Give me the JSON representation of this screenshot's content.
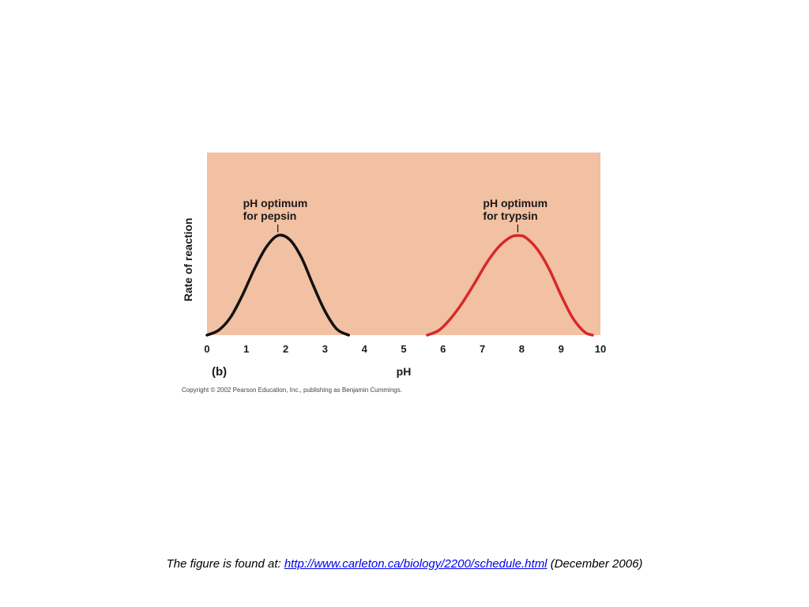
{
  "chart_data": {
    "type": "line",
    "xlabel": "pH",
    "ylabel": "Rate of reaction",
    "xlim": [
      0,
      10
    ],
    "x_ticks": [
      "0",
      "1",
      "2",
      "3",
      "4",
      "5",
      "6",
      "7",
      "8",
      "9",
      "10"
    ],
    "panel_label": "(b)",
    "background_color": "#f2c0a2",
    "series": [
      {
        "color": "#111111",
        "x": [
          0,
          0.3,
          0.6,
          0.9,
          1.2,
          1.5,
          1.8,
          2.1,
          2.4,
          2.7,
          3.0,
          3.3,
          3.6
        ],
        "y": [
          0,
          0.05,
          0.18,
          0.4,
          0.66,
          0.88,
          1.0,
          0.96,
          0.78,
          0.5,
          0.24,
          0.06,
          0
        ]
      },
      {
        "color": "#d42a2a",
        "x": [
          5.6,
          5.9,
          6.2,
          6.5,
          6.8,
          7.1,
          7.4,
          7.7,
          7.9,
          8.1,
          8.4,
          8.7,
          9.0,
          9.3,
          9.6,
          9.8
        ],
        "y": [
          0,
          0.05,
          0.17,
          0.33,
          0.52,
          0.72,
          0.88,
          0.98,
          1.0,
          0.98,
          0.86,
          0.66,
          0.4,
          0.17,
          0.03,
          0
        ]
      }
    ],
    "annotations": [
      {
        "text": [
          "pH optimum",
          "for pepsin"
        ],
        "x": 1.8
      },
      {
        "text": [
          "pH optimum",
          "for trypsin"
        ],
        "x": 7.9
      }
    ],
    "copyright": "Copyright © 2002 Pearson Education, Inc., publishing as Benjamin Cummings."
  },
  "caption": {
    "prefix": "The figure is found at: ",
    "link_text": "http://www.carleton.ca/biology/2200/schedule.html",
    "suffix": " (December 2006)"
  }
}
